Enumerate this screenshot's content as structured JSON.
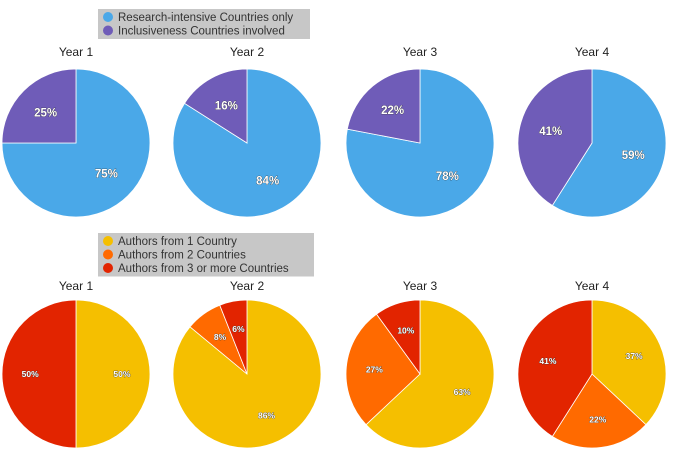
{
  "chart_data": [
    {
      "type": "pie",
      "legend": {
        "placement": "top-center",
        "entries": [
          {
            "name": "Research-intensive Countries only",
            "color": "#4aa8e8"
          },
          {
            "name": "Inclusiveness Countries involved",
            "color": "#6f5cb8"
          }
        ]
      },
      "pies": [
        {
          "title": "Year 1",
          "slices": [
            {
              "series": 0,
              "value": 75,
              "label": "75%"
            },
            {
              "series": 1,
              "value": 25,
              "label": "25%"
            }
          ]
        },
        {
          "title": "Year 2",
          "slices": [
            {
              "series": 0,
              "value": 84,
              "label": "84%"
            },
            {
              "series": 1,
              "value": 16,
              "label": "16%"
            }
          ]
        },
        {
          "title": "Year 3",
          "slices": [
            {
              "series": 0,
              "value": 78,
              "label": "78%"
            },
            {
              "series": 1,
              "value": 22,
              "label": "22%"
            }
          ]
        },
        {
          "title": "Year 4",
          "slices": [
            {
              "series": 0,
              "value": 59,
              "label": "59%"
            },
            {
              "series": 1,
              "value": 41,
              "label": "41%"
            }
          ]
        }
      ]
    },
    {
      "type": "pie",
      "legend": {
        "placement": "top-center",
        "entries": [
          {
            "name": "Authors from 1 Country",
            "color": "#f5bf00"
          },
          {
            "name": "Authors from 2 Countries",
            "color": "#ff6a00"
          },
          {
            "name": "Authors from 3 or more Countries",
            "color": "#e22400"
          }
        ]
      },
      "pies": [
        {
          "title": "Year 1",
          "slices": [
            {
              "series": 0,
              "value": 50,
              "label": "50%"
            },
            {
              "series": 1,
              "value": 0,
              "label": ""
            },
            {
              "series": 2,
              "value": 50,
              "label": "50%"
            }
          ]
        },
        {
          "title": "Year 2",
          "slices": [
            {
              "series": 0,
              "value": 86,
              "label": "86%"
            },
            {
              "series": 1,
              "value": 8,
              "label": "8%"
            },
            {
              "series": 2,
              "value": 6,
              "label": "6%"
            }
          ]
        },
        {
          "title": "Year 3",
          "slices": [
            {
              "series": 0,
              "value": 63,
              "label": "63%"
            },
            {
              "series": 1,
              "value": 27,
              "label": "27%"
            },
            {
              "series": 2,
              "value": 10,
              "label": "10%"
            }
          ]
        },
        {
          "title": "Year 4",
          "slices": [
            {
              "series": 0,
              "value": 37,
              "label": "37%"
            },
            {
              "series": 1,
              "value": 22,
              "label": "22%"
            },
            {
              "series": 2,
              "value": 41,
              "label": "41%"
            }
          ]
        }
      ]
    }
  ]
}
